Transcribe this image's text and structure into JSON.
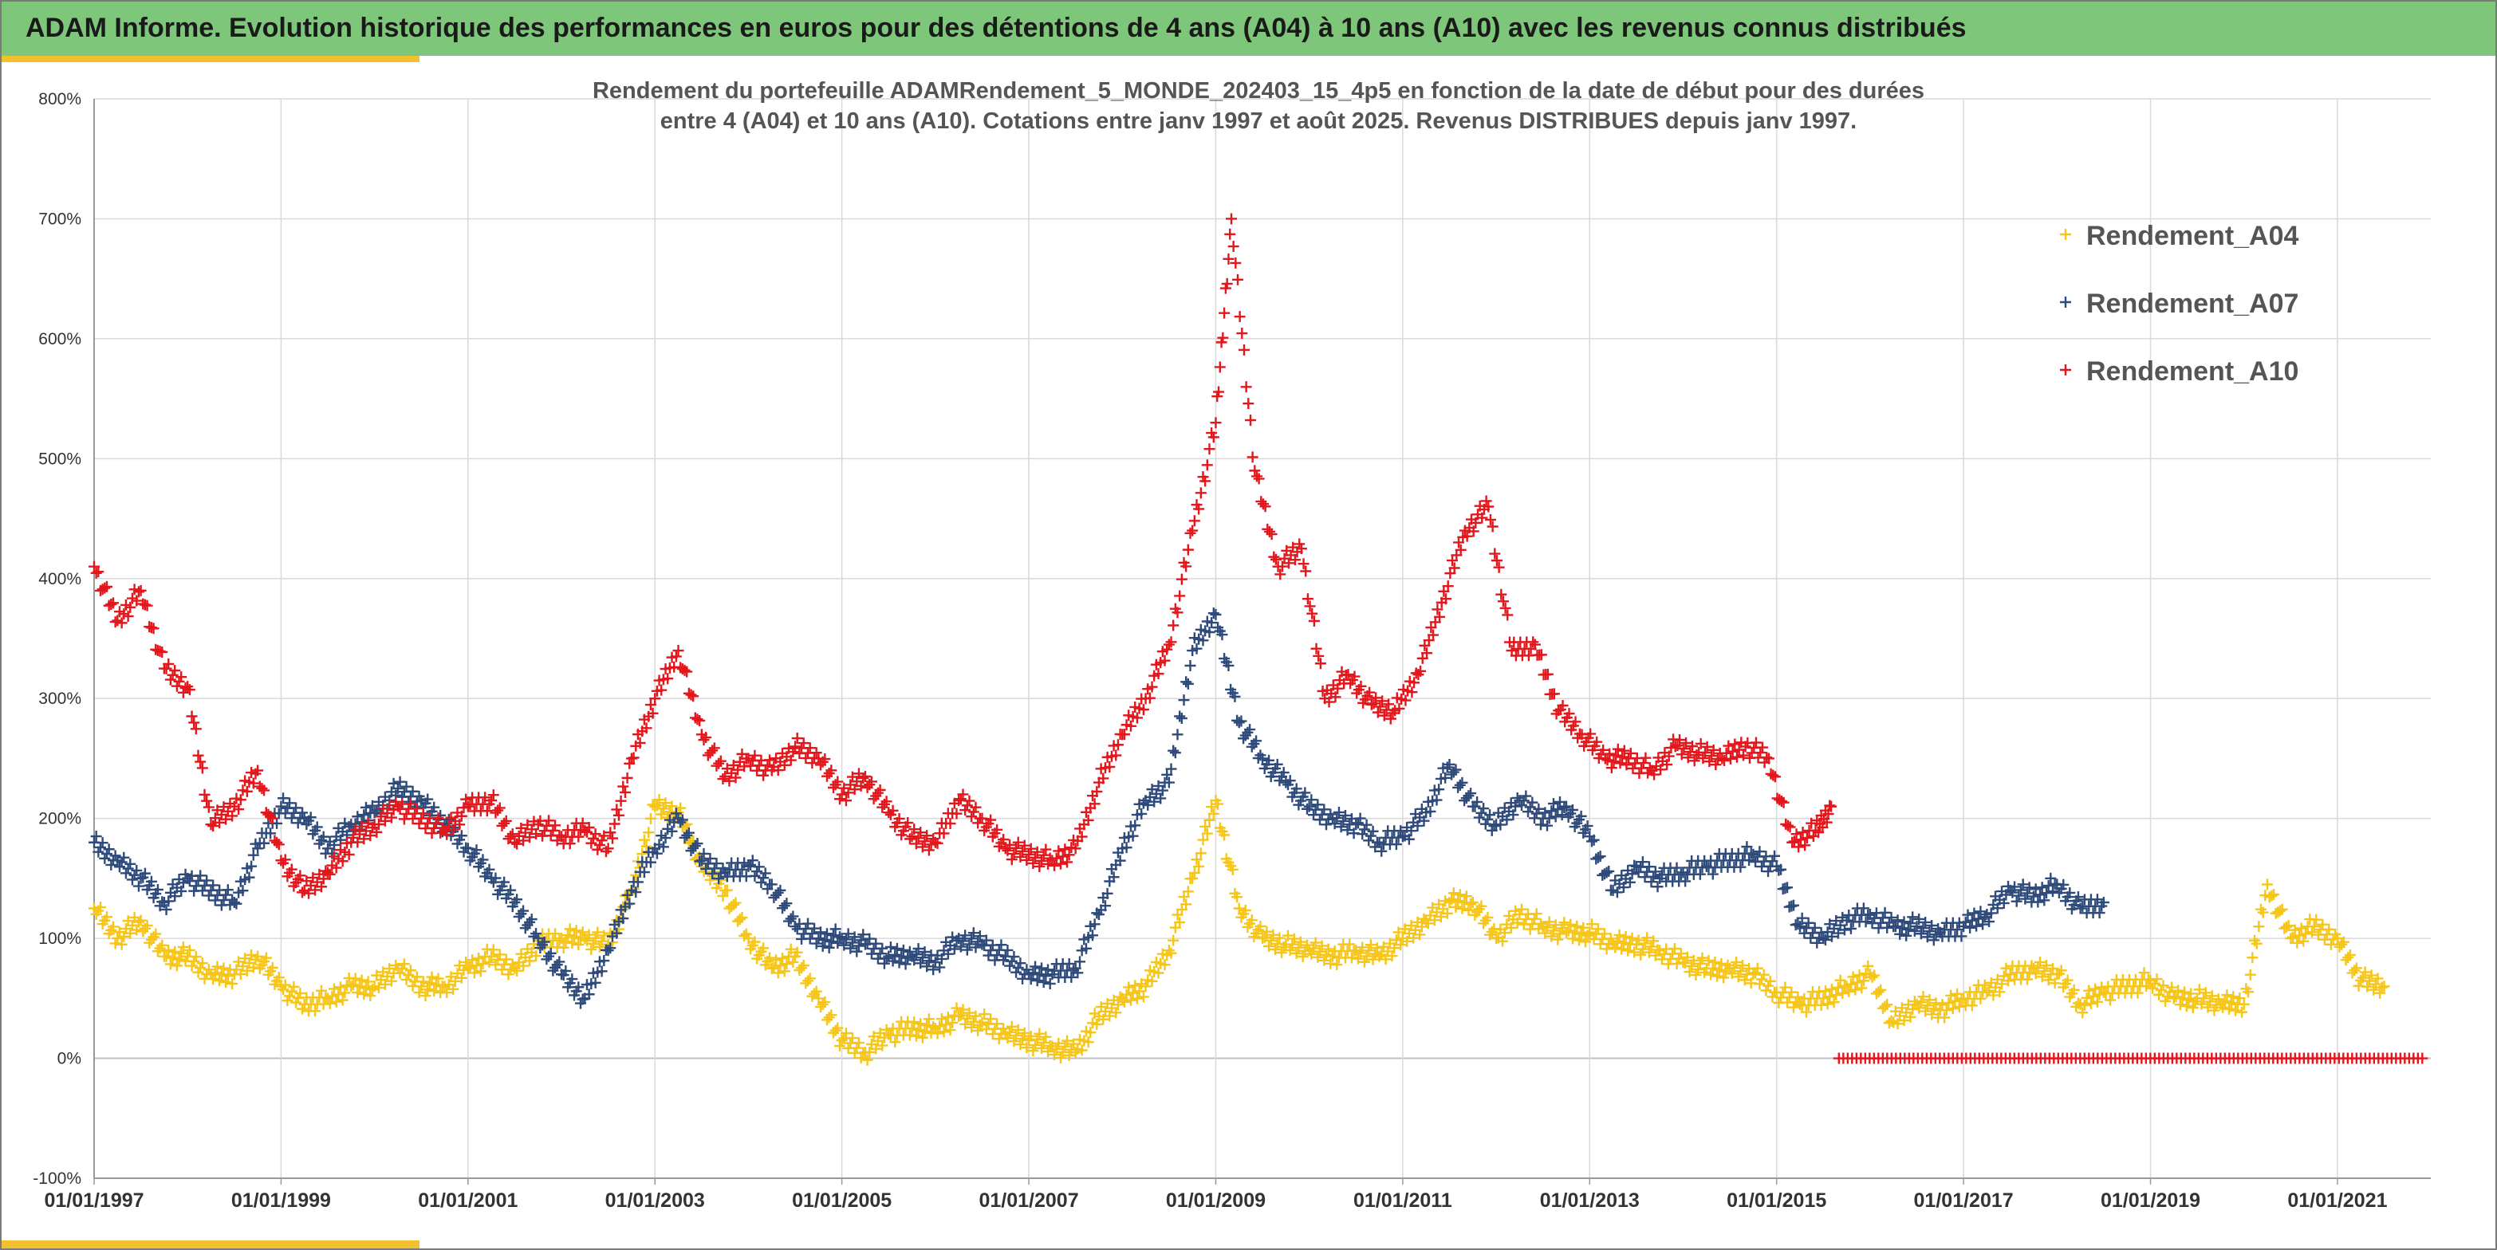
{
  "page": {
    "banner_title": "ADAM Informe. Evolution historique des performances en euros pour des détentions de 4 ans (A04) à 10 ans (A10) avec les revenus connus distribués"
  },
  "colors": {
    "banner": "#7dc67a",
    "accent_yellow": "#f2c12e",
    "A04": "#f5c518",
    "A07": "#2e4a7a",
    "A10": "#e3161c",
    "grid": "#d9d9d9"
  },
  "chart_data": {
    "type": "scatter",
    "title_lines": [
      "Rendement du portefeuille ADAMRendement_5_MONDE_202403_15_4p5  en fonction de la date de début pour des durées",
      "entre 4 (A04) et 10 ans (A10). Cotations entre janv 1997 et août 2025. Revenus DISTRIBUES depuis janv 1997."
    ],
    "xlabel": "",
    "ylabel": "",
    "x_type": "date",
    "xlim": [
      "1997-01-01",
      "2021-12-31"
    ],
    "ylim": [
      -100,
      800
    ],
    "y_ticks": [
      -100,
      0,
      100,
      200,
      300,
      400,
      500,
      600,
      700,
      800
    ],
    "y_tick_labels": [
      "-100%",
      "0%",
      "100%",
      "200%",
      "300%",
      "400%",
      "500%",
      "600%",
      "700%",
      "800%"
    ],
    "x_ticks": [
      "1997-01-01",
      "1999-01-01",
      "2001-01-01",
      "2003-01-01",
      "2005-01-01",
      "2007-01-01",
      "2009-01-01",
      "2011-01-01",
      "2013-01-01",
      "2015-01-01",
      "2017-01-01",
      "2019-01-01",
      "2021-01-01"
    ],
    "x_tick_labels": [
      "01/01/1997",
      "01/01/1999",
      "01/01/2001",
      "01/01/2003",
      "01/01/2005",
      "01/01/2007",
      "01/01/2009",
      "01/01/2011",
      "01/01/2013",
      "01/01/2015",
      "01/01/2017",
      "01/01/2019",
      "01/01/2021"
    ],
    "grid": true,
    "legend_position": "top-right",
    "marker": "+",
    "series": [
      {
        "name": "Rendement_A04",
        "color": "#f5c518",
        "points": [
          [
            "1997-01",
            125
          ],
          [
            "1997-04",
            100
          ],
          [
            "1997-07",
            115
          ],
          [
            "1997-10",
            85
          ],
          [
            "1998-01",
            85
          ],
          [
            "1998-04",
            70
          ],
          [
            "1998-07",
            70
          ],
          [
            "1998-10",
            85
          ],
          [
            "1999-01",
            60
          ],
          [
            "1999-04",
            45
          ],
          [
            "1999-07",
            50
          ],
          [
            "1999-10",
            60
          ],
          [
            "2000-01",
            60
          ],
          [
            "2000-04",
            75
          ],
          [
            "2000-07",
            60
          ],
          [
            "2000-10",
            60
          ],
          [
            "2001-01",
            75
          ],
          [
            "2001-04",
            85
          ],
          [
            "2001-07",
            75
          ],
          [
            "2001-10",
            95
          ],
          [
            "2002-01",
            100
          ],
          [
            "2002-04",
            100
          ],
          [
            "2002-07",
            95
          ],
          [
            "2002-10",
            140
          ],
          [
            "2003-01",
            210
          ],
          [
            "2003-04",
            205
          ],
          [
            "2003-07",
            160
          ],
          [
            "2003-10",
            140
          ],
          [
            "2004-01",
            100
          ],
          [
            "2004-04",
            75
          ],
          [
            "2004-07",
            85
          ],
          [
            "2004-10",
            50
          ],
          [
            "2005-01",
            15
          ],
          [
            "2005-04",
            5
          ],
          [
            "2005-07",
            20
          ],
          [
            "2005-10",
            25
          ],
          [
            "2006-01",
            25
          ],
          [
            "2006-04",
            35
          ],
          [
            "2006-07",
            30
          ],
          [
            "2006-10",
            20
          ],
          [
            "2007-01",
            15
          ],
          [
            "2007-04",
            10
          ],
          [
            "2007-07",
            5
          ],
          [
            "2007-10",
            35
          ],
          [
            "2008-01",
            50
          ],
          [
            "2008-04",
            60
          ],
          [
            "2008-07",
            90
          ],
          [
            "2008-10",
            150
          ],
          [
            "2009-01",
            215
          ],
          [
            "2009-04",
            125
          ],
          [
            "2009-07",
            100
          ],
          [
            "2009-10",
            95
          ],
          [
            "2010-01",
            90
          ],
          [
            "2010-04",
            85
          ],
          [
            "2010-07",
            90
          ],
          [
            "2010-10",
            85
          ],
          [
            "2011-01",
            100
          ],
          [
            "2011-04",
            115
          ],
          [
            "2011-07",
            130
          ],
          [
            "2011-10",
            130
          ],
          [
            "2012-01",
            100
          ],
          [
            "2012-04",
            120
          ],
          [
            "2012-07",
            110
          ],
          [
            "2012-10",
            105
          ],
          [
            "2013-01",
            105
          ],
          [
            "2013-04",
            95
          ],
          [
            "2013-07",
            95
          ],
          [
            "2013-10",
            90
          ],
          [
            "2014-01",
            80
          ],
          [
            "2014-04",
            75
          ],
          [
            "2014-07",
            75
          ],
          [
            "2014-10",
            70
          ],
          [
            "2015-01",
            55
          ],
          [
            "2015-04",
            45
          ],
          [
            "2015-07",
            50
          ],
          [
            "2015-10",
            60
          ],
          [
            "2016-01",
            70
          ],
          [
            "2016-04",
            30
          ],
          [
            "2016-07",
            45
          ],
          [
            "2016-10",
            40
          ],
          [
            "2017-01",
            50
          ],
          [
            "2017-04",
            55
          ],
          [
            "2017-07",
            70
          ],
          [
            "2017-10",
            75
          ],
          [
            "2018-01",
            70
          ],
          [
            "2018-04",
            45
          ],
          [
            "2018-07",
            55
          ],
          [
            "2018-10",
            60
          ],
          [
            "2019-01",
            65
          ],
          [
            "2019-04",
            50
          ],
          [
            "2019-07",
            50
          ],
          [
            "2019-10",
            45
          ],
          [
            "2020-01",
            45
          ],
          [
            "2020-04",
            145
          ],
          [
            "2020-07",
            100
          ],
          [
            "2020-10",
            110
          ],
          [
            "2021-01",
            100
          ],
          [
            "2021-04",
            65
          ],
          [
            "2021-07",
            60
          ]
        ]
      },
      {
        "name": "Rendement_A07",
        "color": "#2e4a7a",
        "points": [
          [
            "1997-01",
            180
          ],
          [
            "1997-04",
            165
          ],
          [
            "1997-07",
            150
          ],
          [
            "1997-10",
            130
          ],
          [
            "1998-01",
            150
          ],
          [
            "1998-04",
            140
          ],
          [
            "1998-07",
            130
          ],
          [
            "1998-10",
            175
          ],
          [
            "1999-01",
            210
          ],
          [
            "1999-04",
            200
          ],
          [
            "1999-07",
            175
          ],
          [
            "1999-10",
            195
          ],
          [
            "2000-01",
            205
          ],
          [
            "2000-04",
            225
          ],
          [
            "2000-07",
            215
          ],
          [
            "2000-10",
            195
          ],
          [
            "2001-01",
            175
          ],
          [
            "2001-04",
            150
          ],
          [
            "2001-07",
            130
          ],
          [
            "2001-10",
            100
          ],
          [
            "2002-01",
            70
          ],
          [
            "2002-04",
            50
          ],
          [
            "2002-07",
            90
          ],
          [
            "2002-10",
            140
          ],
          [
            "2003-01",
            175
          ],
          [
            "2003-04",
            200
          ],
          [
            "2003-07",
            165
          ],
          [
            "2003-10",
            155
          ],
          [
            "2004-01",
            160
          ],
          [
            "2004-04",
            145
          ],
          [
            "2004-07",
            110
          ],
          [
            "2004-10",
            100
          ],
          [
            "2005-01",
            100
          ],
          [
            "2005-04",
            95
          ],
          [
            "2005-07",
            85
          ],
          [
            "2005-10",
            85
          ],
          [
            "2006-01",
            80
          ],
          [
            "2006-04",
            100
          ],
          [
            "2006-07",
            95
          ],
          [
            "2006-10",
            85
          ],
          [
            "2007-01",
            70
          ],
          [
            "2007-04",
            70
          ],
          [
            "2007-07",
            75
          ],
          [
            "2007-10",
            120
          ],
          [
            "2008-01",
            175
          ],
          [
            "2008-04",
            215
          ],
          [
            "2008-07",
            230
          ],
          [
            "2008-10",
            340
          ],
          [
            "2009-01",
            370
          ],
          [
            "2009-04",
            280
          ],
          [
            "2009-07",
            250
          ],
          [
            "2009-10",
            230
          ],
          [
            "2010-01",
            210
          ],
          [
            "2010-04",
            200
          ],
          [
            "2010-07",
            195
          ],
          [
            "2010-10",
            180
          ],
          [
            "2011-01",
            185
          ],
          [
            "2011-04",
            205
          ],
          [
            "2011-07",
            245
          ],
          [
            "2011-10",
            210
          ],
          [
            "2012-01",
            195
          ],
          [
            "2012-04",
            215
          ],
          [
            "2012-07",
            200
          ],
          [
            "2012-10",
            210
          ],
          [
            "2013-01",
            185
          ],
          [
            "2013-04",
            140
          ],
          [
            "2013-07",
            160
          ],
          [
            "2013-10",
            150
          ],
          [
            "2014-01",
            155
          ],
          [
            "2014-04",
            160
          ],
          [
            "2014-07",
            165
          ],
          [
            "2014-10",
            170
          ],
          [
            "2015-01",
            160
          ],
          [
            "2015-04",
            110
          ],
          [
            "2015-07",
            100
          ],
          [
            "2015-10",
            115
          ],
          [
            "2016-01",
            120
          ],
          [
            "2016-04",
            110
          ],
          [
            "2016-07",
            110
          ],
          [
            "2016-10",
            105
          ],
          [
            "2017-01",
            110
          ],
          [
            "2017-04",
            120
          ],
          [
            "2017-07",
            140
          ],
          [
            "2017-10",
            135
          ],
          [
            "2018-01",
            145
          ],
          [
            "2018-04",
            125
          ],
          [
            "2018-07",
            130
          ]
        ]
      },
      {
        "name": "Rendement_A10",
        "color": "#e3161c",
        "points": [
          [
            "1997-01",
            410
          ],
          [
            "1997-04",
            365
          ],
          [
            "1997-07",
            390
          ],
          [
            "1997-10",
            325
          ],
          [
            "1998-01",
            310
          ],
          [
            "1998-04",
            195
          ],
          [
            "1998-07",
            210
          ],
          [
            "1998-10",
            240
          ],
          [
            "1999-01",
            165
          ],
          [
            "1999-04",
            140
          ],
          [
            "1999-07",
            155
          ],
          [
            "1999-10",
            180
          ],
          [
            "2000-01",
            195
          ],
          [
            "2000-04",
            210
          ],
          [
            "2000-07",
            200
          ],
          [
            "2000-10",
            190
          ],
          [
            "2001-01",
            210
          ],
          [
            "2001-04",
            215
          ],
          [
            "2001-07",
            180
          ],
          [
            "2001-10",
            195
          ],
          [
            "2002-01",
            185
          ],
          [
            "2002-04",
            190
          ],
          [
            "2002-07",
            175
          ],
          [
            "2002-10",
            250
          ],
          [
            "2003-01",
            300
          ],
          [
            "2003-04",
            340
          ],
          [
            "2003-07",
            270
          ],
          [
            "2003-10",
            235
          ],
          [
            "2004-01",
            250
          ],
          [
            "2004-04",
            240
          ],
          [
            "2004-07",
            260
          ],
          [
            "2004-10",
            250
          ],
          [
            "2005-01",
            220
          ],
          [
            "2005-04",
            235
          ],
          [
            "2005-07",
            205
          ],
          [
            "2005-10",
            185
          ],
          [
            "2006-01",
            180
          ],
          [
            "2006-04",
            215
          ],
          [
            "2006-07",
            200
          ],
          [
            "2006-10",
            175
          ],
          [
            "2007-01",
            170
          ],
          [
            "2007-04",
            165
          ],
          [
            "2007-07",
            175
          ],
          [
            "2007-10",
            230
          ],
          [
            "2008-01",
            270
          ],
          [
            "2008-04",
            300
          ],
          [
            "2008-07",
            345
          ],
          [
            "2008-10",
            440
          ],
          [
            "2009-01",
            530
          ],
          [
            "2009-03",
            700
          ],
          [
            "2009-06",
            490
          ],
          [
            "2009-09",
            410
          ],
          [
            "2009-12",
            425
          ],
          [
            "2010-03",
            300
          ],
          [
            "2010-06",
            320
          ],
          [
            "2010-09",
            295
          ],
          [
            "2010-12",
            290
          ],
          [
            "2011-03",
            320
          ],
          [
            "2011-06",
            380
          ],
          [
            "2011-09",
            440
          ],
          [
            "2011-12",
            460
          ],
          [
            "2012-03",
            340
          ],
          [
            "2012-06",
            345
          ],
          [
            "2012-09",
            290
          ],
          [
            "2012-12",
            270
          ],
          [
            "2013-03",
            250
          ],
          [
            "2013-06",
            250
          ],
          [
            "2013-09",
            240
          ],
          [
            "2013-12",
            260
          ],
          [
            "2014-03",
            255
          ],
          [
            "2014-06",
            250
          ],
          [
            "2014-09",
            260
          ],
          [
            "2014-12",
            250
          ],
          [
            "2015-03",
            180
          ],
          [
            "2015-06",
            190
          ],
          [
            "2015-08",
            210
          ]
        ],
        "zero_segment": [
          "2015-09",
          "2021-12"
        ]
      }
    ]
  }
}
